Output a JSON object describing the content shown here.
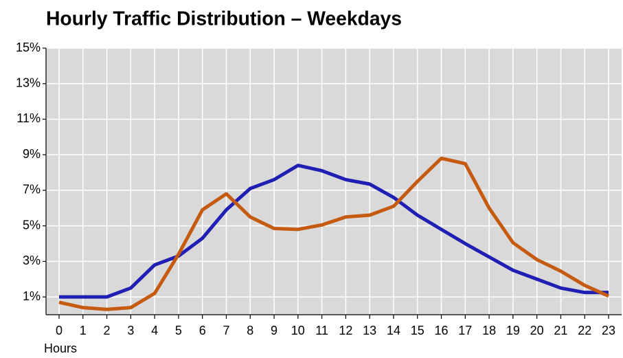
{
  "chart_data": {
    "type": "line",
    "title": "Hourly Traffic Distribution – Weekdays",
    "xlabel": "Hours",
    "categories": [
      "0",
      "1",
      "2",
      "3",
      "4",
      "5",
      "6",
      "7",
      "8",
      "9",
      "10",
      "11",
      "12",
      "13",
      "14",
      "15",
      "16",
      "17",
      "18",
      "19",
      "20",
      "21",
      "22",
      "23"
    ],
    "series": [
      {
        "color": "#1f1fb4",
        "values": [
          1.0,
          1.0,
          1.0,
          1.5,
          2.8,
          3.3,
          4.3,
          5.9,
          7.1,
          7.6,
          8.4,
          8.1,
          7.6,
          7.35,
          6.6,
          5.6,
          4.8,
          4.0,
          3.25,
          2.5,
          2.0,
          1.5,
          1.25,
          1.25
        ]
      },
      {
        "color": "#c55a11",
        "values": [
          0.7,
          0.4,
          0.3,
          0.4,
          1.2,
          3.4,
          5.9,
          6.8,
          5.5,
          4.85,
          4.8,
          5.05,
          5.5,
          5.6,
          6.1,
          7.5,
          8.8,
          8.5,
          6.0,
          4.05,
          3.1,
          2.45,
          1.65,
          1.05
        ]
      }
    ],
    "ylim": [
      0,
      15
    ],
    "yticks": [
      {
        "value": 1,
        "label": "1%"
      },
      {
        "value": 3,
        "label": "3%"
      },
      {
        "value": 5,
        "label": "5%"
      },
      {
        "value": 7,
        "label": "7%"
      },
      {
        "value": 9,
        "label": "9%"
      },
      {
        "value": 11,
        "label": "11%"
      },
      {
        "value": 13,
        "label": "13%"
      },
      {
        "value": 15,
        "label": "15%"
      }
    ],
    "grid": true
  }
}
